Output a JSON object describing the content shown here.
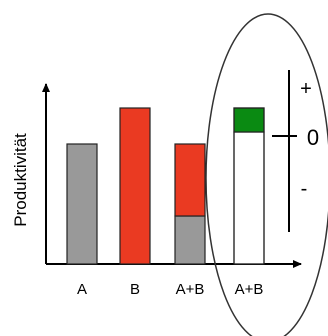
{
  "chart_data": {
    "type": "bar",
    "ylabel": "Produktivität",
    "categories": [
      "A",
      "B",
      "A+B",
      "A+B"
    ],
    "bars": [
      {
        "category": "A",
        "segments": [
          {
            "value": 1.0,
            "color": "#999999"
          }
        ]
      },
      {
        "category": "B",
        "segments": [
          {
            "value": 1.3,
            "color": "#ea3a22"
          }
        ]
      },
      {
        "category": "A+B",
        "segments": [
          {
            "value": 0.4,
            "color": "#999999"
          },
          {
            "value": 0.6,
            "color": "#ea3a22"
          }
        ]
      },
      {
        "category": "A+B",
        "segments": [
          {
            "value": 1.1,
            "color": "#ffffff"
          },
          {
            "value": 0.2,
            "color": "#0a8a12"
          }
        ]
      }
    ],
    "scale": {
      "plus_label": "+",
      "zero_label": "0",
      "minus_label": "-"
    },
    "ylim": [
      0,
      1.5
    ],
    "grid": false,
    "legend": "none"
  }
}
